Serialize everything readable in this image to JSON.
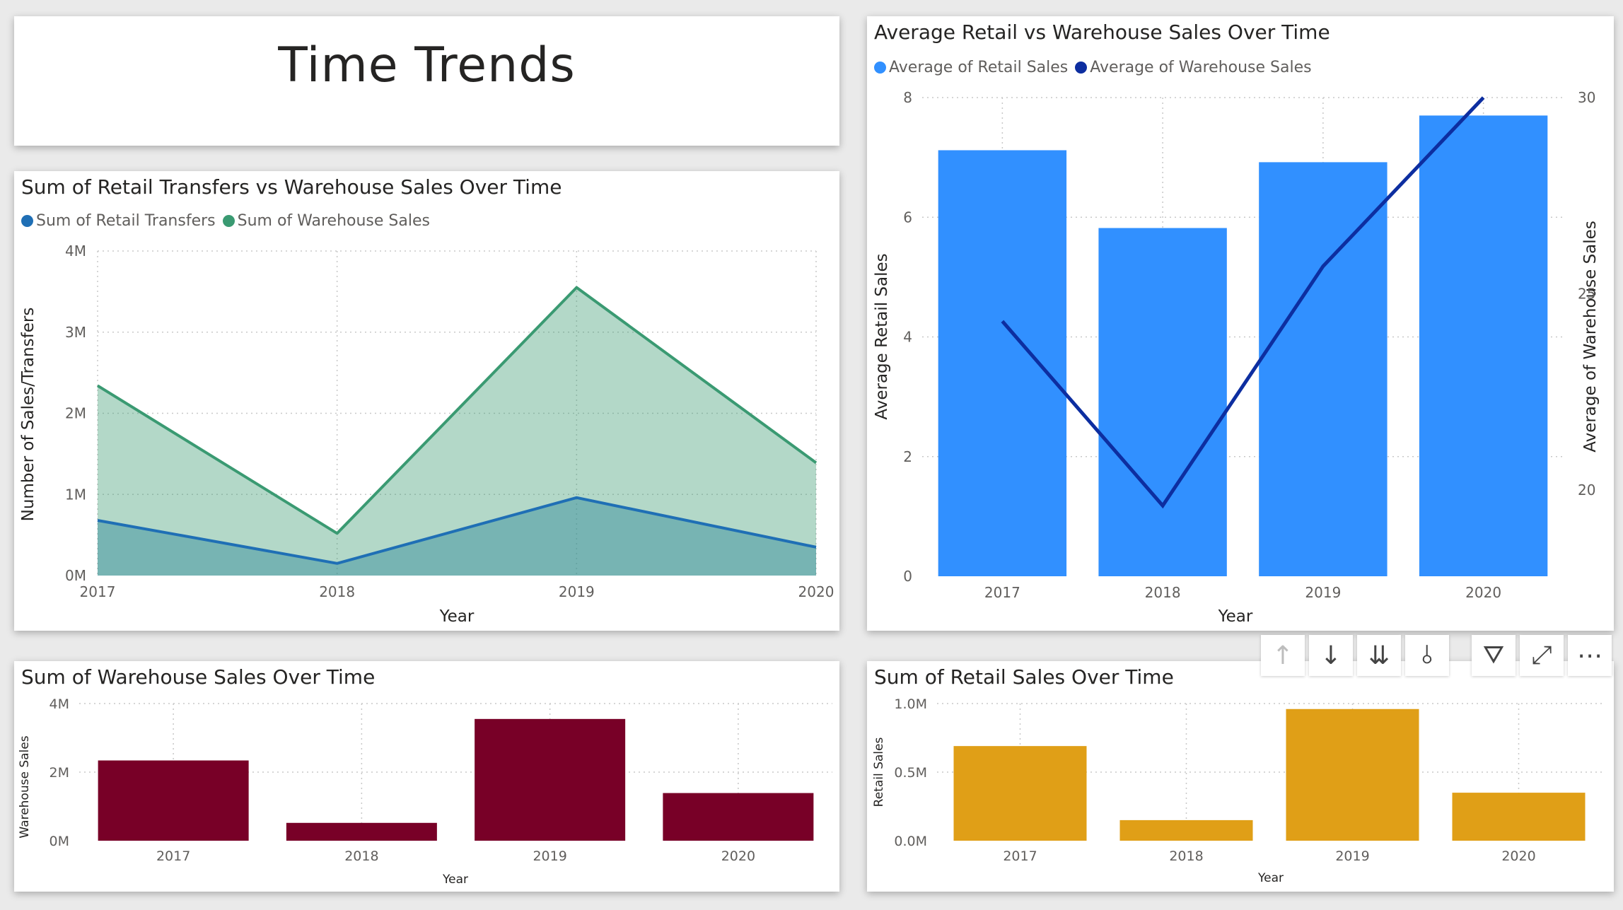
{
  "page_title": "Time Trends",
  "colors": {
    "retail_transfers": "#1f6fb5",
    "warehouse_sales_area": "#3a9a72",
    "retail_bar": "#3190ff",
    "warehouse_line": "#0d2ea0",
    "warehouse_bar": "#780027",
    "retail_sales_bar": "#e09f17"
  },
  "toolbar": {
    "icons": [
      "arrow-up-icon",
      "arrow-down-icon",
      "double-arrow-down-icon",
      "expand-hierarchy-icon",
      "filter-icon",
      "focus-mode-icon",
      "more-options-icon"
    ],
    "up": "↑",
    "down": "↓",
    "double_down": "⇊",
    "hierarchy": "⫰",
    "filter": "⛛",
    "focus": "⤢",
    "more": "⋯"
  },
  "chart_data": [
    {
      "id": "transfers_vs_warehouse",
      "type": "area",
      "title": "Sum of Retail Transfers vs Warehouse Sales Over Time",
      "xlabel": "Year",
      "ylabel": "Number of Sales/Transfers",
      "categories": [
        "2017",
        "2018",
        "2019",
        "2020"
      ],
      "series": [
        {
          "name": "Sum of Retail Transfers",
          "values": [
            680000,
            150000,
            960000,
            350000
          ]
        },
        {
          "name": "Sum of Warehouse Sales",
          "values": [
            2340000,
            520000,
            3550000,
            1390000
          ]
        }
      ],
      "ylim": [
        0,
        4000000
      ],
      "yticks": [
        "0M",
        "1M",
        "2M",
        "3M",
        "4M"
      ],
      "legend": "top-left",
      "grid": true
    },
    {
      "id": "avg_retail_vs_warehouse",
      "type": "bar",
      "title": "Average Retail vs Warehouse Sales Over Time",
      "xlabel": "Year",
      "ylabel": "Average Retail Sales",
      "y2label": "Average of Warehouse Sales",
      "categories": [
        "2017",
        "2018",
        "2019",
        "2020"
      ],
      "series": [
        {
          "name": "Average of Retail Sales",
          "kind": "bar",
          "axis": "left",
          "values": [
            7.12,
            5.82,
            6.92,
            7.7
          ]
        },
        {
          "name": "Average of Warehouse Sales",
          "kind": "line",
          "axis": "right",
          "values": [
            24.3,
            19.6,
            25.7,
            30.0
          ]
        }
      ],
      "ylim": [
        0,
        8
      ],
      "yticks": [
        "0",
        "2",
        "4",
        "6",
        "8"
      ],
      "y2lim": [
        17.8,
        30
      ],
      "y2ticks": [
        "20",
        "25",
        "30"
      ],
      "legend": "top-left",
      "grid": true
    },
    {
      "id": "warehouse_sales",
      "type": "bar",
      "title": "Sum of Warehouse Sales Over Time",
      "xlabel": "Year",
      "ylabel": "Warehouse Sales",
      "categories": [
        "2017",
        "2018",
        "2019",
        "2020"
      ],
      "values": [
        2340000,
        520000,
        3550000,
        1390000
      ],
      "ylim": [
        0,
        4000000
      ],
      "yticks": [
        "0M",
        "2M",
        "4M"
      ],
      "grid": true
    },
    {
      "id": "retail_sales",
      "type": "bar",
      "title": "Sum of Retail Sales Over Time",
      "xlabel": "Year",
      "ylabel": "Retail Sales",
      "categories": [
        "2017",
        "2018",
        "2019",
        "2020"
      ],
      "values": [
        690000,
        150000,
        960000,
        350000
      ],
      "ylim": [
        0,
        1000000
      ],
      "yticks": [
        "0.0M",
        "0.5M",
        "1.0M"
      ],
      "grid": true
    }
  ]
}
